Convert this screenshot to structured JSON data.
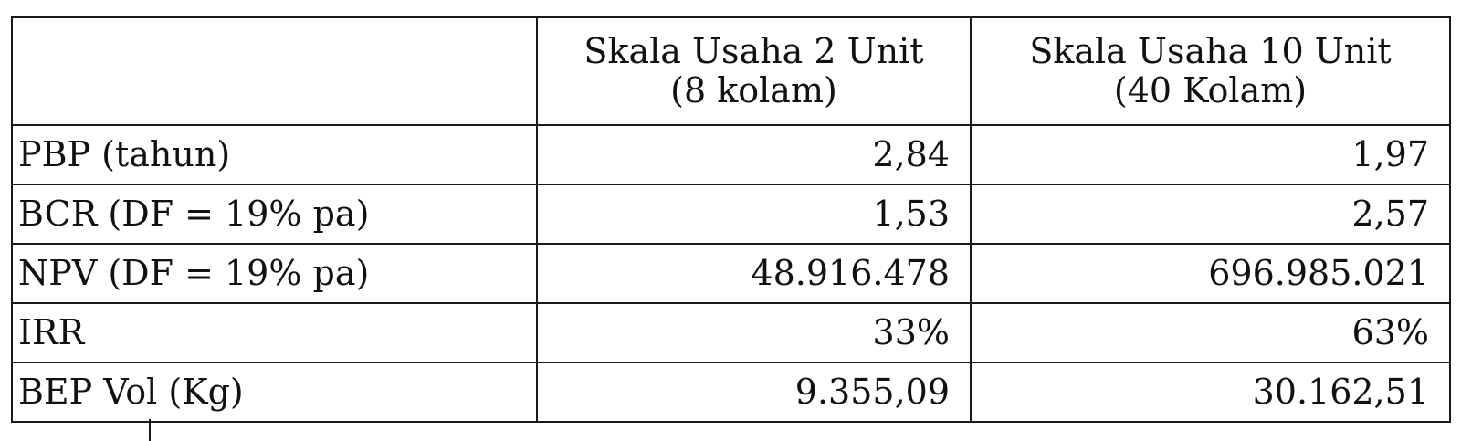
{
  "table": {
    "header": {
      "col1": "",
      "col2_line1": "Skala Usaha 2 Unit",
      "col2_line2": "(8 kolam)",
      "col3_line1": "Skala Usaha 10 Unit",
      "col3_line2": "(40 Kolam)"
    },
    "rows": [
      {
        "label": "PBP (tahun)",
        "unit2": "2,84",
        "unit10": "1,97"
      },
      {
        "label": "BCR (DF = 19% pa)",
        "unit2": "1,53",
        "unit10": "2,57"
      },
      {
        "label": "NPV (DF = 19% pa)",
        "unit2": "48.916.478",
        "unit10": "696.985.021"
      },
      {
        "label": "IRR",
        "unit2": "33%",
        "unit10": "63%"
      },
      {
        "label": "BEP Vol (Kg)",
        "unit2": "9.355,09",
        "unit10": "30.162,51"
      }
    ]
  }
}
